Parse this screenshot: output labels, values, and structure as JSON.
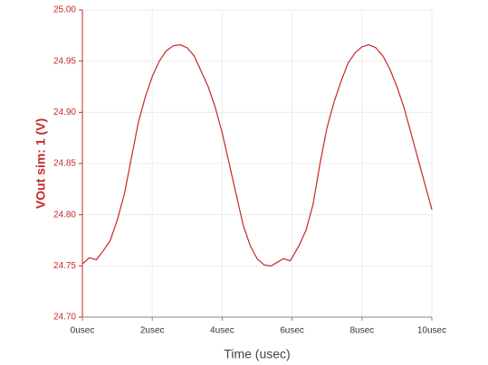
{
  "chart_data": {
    "type": "line",
    "xlabel": "Time (usec)",
    "ylabel": "VOut sim: 1 (V)",
    "x": [
      0,
      0.2,
      0.4,
      0.6,
      0.8,
      1.0,
      1.2,
      1.4,
      1.6,
      1.8,
      2.0,
      2.2,
      2.4,
      2.6,
      2.8,
      3.0,
      3.2,
      3.4,
      3.6,
      3.8,
      4.0,
      4.2,
      4.4,
      4.6,
      4.8,
      5.0,
      5.2,
      5.4,
      5.6,
      5.75,
      5.95,
      6.2,
      6.4,
      6.6,
      6.8,
      7.0,
      7.2,
      7.4,
      7.6,
      7.8,
      8.0,
      8.2,
      8.4,
      8.6,
      8.8,
      9.0,
      9.2,
      9.4,
      9.6,
      9.8,
      10.0
    ],
    "series": [
      {
        "name": "VOut sim: 1",
        "color": "#c62828",
        "values": [
          24.752,
          24.758,
          24.756,
          24.765,
          24.775,
          24.795,
          24.82,
          24.855,
          24.89,
          24.915,
          24.935,
          24.95,
          24.96,
          24.965,
          24.966,
          24.963,
          24.955,
          24.94,
          24.925,
          24.905,
          24.88,
          24.85,
          24.82,
          24.79,
          24.77,
          24.757,
          24.751,
          24.75,
          24.754,
          24.757,
          24.755,
          24.77,
          24.785,
          24.81,
          24.85,
          24.885,
          24.91,
          24.93,
          24.948,
          24.958,
          24.964,
          24.966,
          24.963,
          24.955,
          24.942,
          24.925,
          24.905,
          24.88,
          24.855,
          24.83,
          24.805
        ]
      }
    ],
    "xlim": [
      0,
      10
    ],
    "xticks": [
      {
        "value": 0,
        "label": "0usec"
      },
      {
        "value": 2,
        "label": "2usec"
      },
      {
        "value": 4,
        "label": "4usec"
      },
      {
        "value": 6,
        "label": "6usec"
      },
      {
        "value": 8,
        "label": "8usec"
      },
      {
        "value": 10,
        "label": "10usec"
      }
    ],
    "ylim": [
      24.7,
      25.0
    ],
    "yticks": [
      {
        "value": 24.7,
        "label": "24.70"
      },
      24.75,
      {
        "value": 24.8,
        "label": "24.80"
      },
      24.85,
      {
        "value": 24.9,
        "label": "24.90"
      },
      24.95,
      {
        "value": 25.0,
        "label": "25.00"
      }
    ],
    "grid": true
  }
}
